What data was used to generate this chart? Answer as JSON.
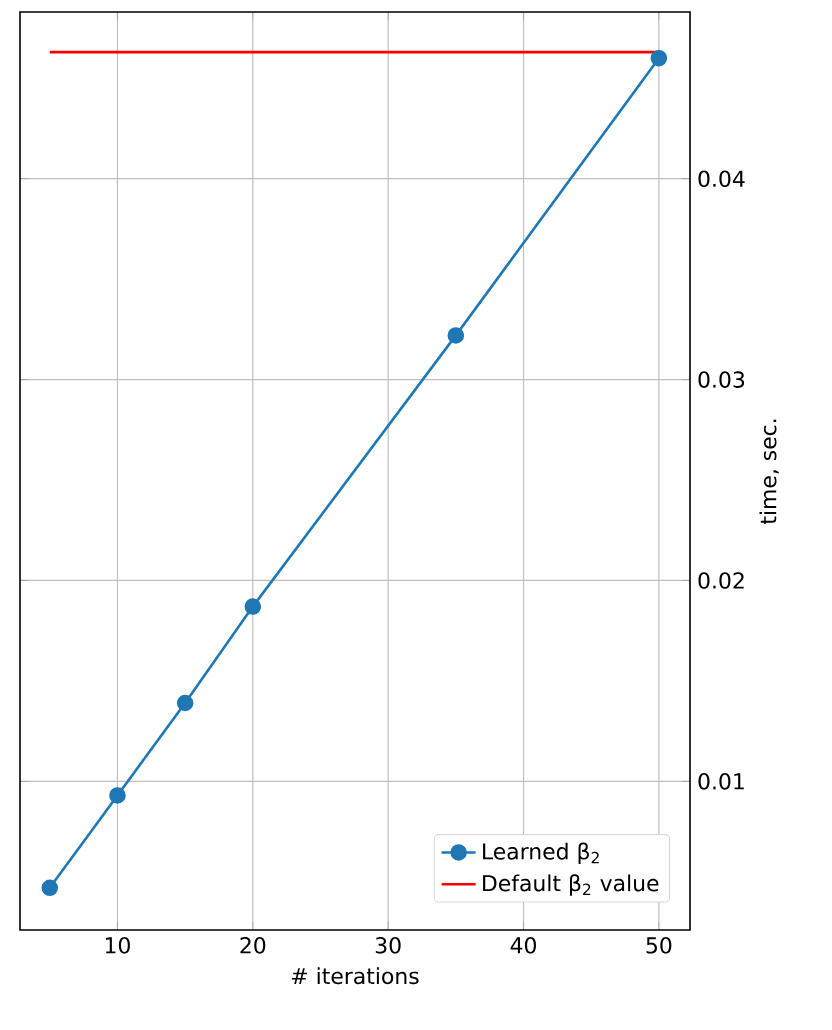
{
  "chart_data": {
    "type": "line",
    "xlabel": "# iterations",
    "ylabel": "time, sec.",
    "series": [
      {
        "name": "Learned β$_{2}$",
        "color": "#1f77b4",
        "x": [
          5,
          10,
          15,
          20,
          35,
          50
        ],
        "values": [
          0.0047,
          0.0093,
          0.0139,
          0.0187,
          0.0322,
          0.046
        ],
        "marker": "circle"
      },
      {
        "name": "Default β$_{2}$ value",
        "color": "#ff0000",
        "x": [
          5,
          50
        ],
        "values": [
          0.0463,
          0.0463
        ],
        "marker": "none"
      }
    ],
    "xlim": [
      2.8,
      52.3
    ],
    "ylim": [
      0.0026,
      0.0483
    ],
    "xticks": [
      10,
      20,
      30,
      40,
      50
    ],
    "yticks": [
      0.01,
      0.02,
      0.03,
      0.04
    ],
    "grid": true,
    "legend": "bottom right",
    "line_style": "solid"
  }
}
